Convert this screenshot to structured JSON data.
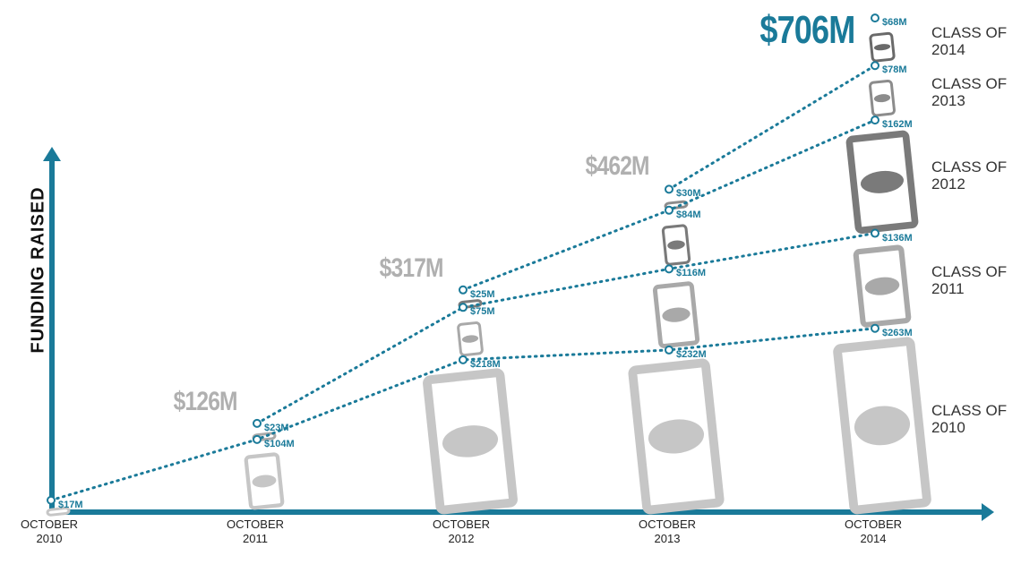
{
  "chart_data": {
    "type": "stacked-line",
    "y_label": "FUNDING RAISED",
    "categories": [
      "OCTOBER 2010",
      "OCTOBER 2011",
      "OCTOBER 2012",
      "OCTOBER 2013",
      "OCTOBER 2014"
    ],
    "ylim": [
      0,
      720
    ],
    "series": [
      {
        "name": "CLASS OF 2010",
        "color": "#c6c6c6",
        "values": [
          17,
          104,
          218,
          232,
          263
        ],
        "value_labels": [
          "$17M",
          "$104M",
          "$218M",
          "$232M",
          "$263M"
        ]
      },
      {
        "name": "CLASS OF 2011",
        "color": "#a9a9a9",
        "values": [
          null,
          23,
          75,
          116,
          136
        ],
        "value_labels": [
          null,
          "$23M",
          "$75M",
          "$116M",
          "$136M"
        ]
      },
      {
        "name": "CLASS OF 2012",
        "color": "#7a7a7a",
        "values": [
          null,
          null,
          25,
          84,
          162
        ],
        "value_labels": [
          null,
          null,
          "$25M",
          "$84M",
          "$162M"
        ]
      },
      {
        "name": "CLASS OF 2013",
        "color": "#8c8c8c",
        "values": [
          null,
          null,
          null,
          30,
          78
        ],
        "value_labels": [
          null,
          null,
          null,
          "$30M",
          "$78M"
        ]
      },
      {
        "name": "CLASS OF 2014",
        "color": "#6a6a6a",
        "values": [
          null,
          null,
          null,
          null,
          68
        ],
        "value_labels": [
          null,
          null,
          null,
          null,
          "$68M"
        ]
      }
    ],
    "totals": {
      "values": [
        null,
        126,
        317,
        462,
        706
      ],
      "value_labels": [
        null,
        "$126M",
        "$317M",
        "$462M",
        "$706M"
      ]
    },
    "line_color": "#1a7a99"
  }
}
